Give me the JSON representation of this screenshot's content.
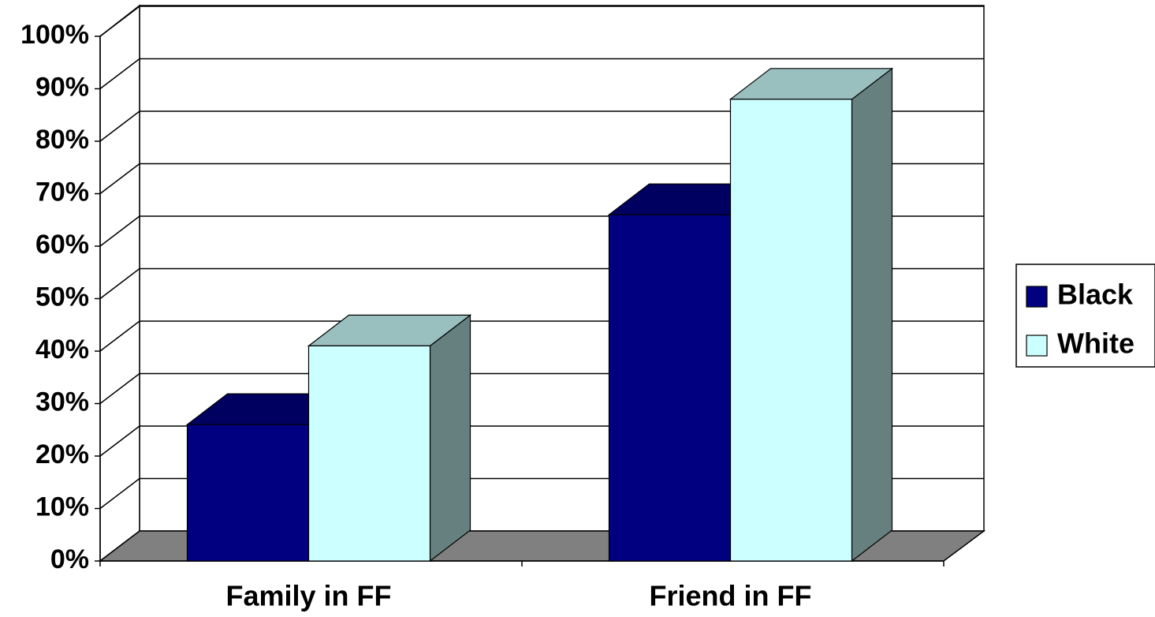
{
  "chart_data": {
    "type": "bar3d",
    "categories": [
      "Family in FF",
      "Friend in FF"
    ],
    "series": [
      {
        "name": "Black",
        "color": "#000080",
        "values": [
          26,
          66
        ]
      },
      {
        "name": "White",
        "color": "#ccffff",
        "values": [
          41,
          88
        ]
      }
    ],
    "ylim": [
      0,
      100
    ],
    "yticks": [
      {
        "value": 0,
        "label": "0%"
      },
      {
        "value": 10,
        "label": "10%"
      },
      {
        "value": 20,
        "label": "20%"
      },
      {
        "value": 30,
        "label": "30%"
      },
      {
        "value": 40,
        "label": "40%"
      },
      {
        "value": 50,
        "label": "50%"
      },
      {
        "value": 60,
        "label": "60%"
      },
      {
        "value": 70,
        "label": "70%"
      },
      {
        "value": 80,
        "label": "80%"
      },
      {
        "value": 90,
        "label": "90%"
      },
      {
        "value": 100,
        "label": "100%"
      }
    ],
    "grid": true,
    "legend": "right"
  }
}
